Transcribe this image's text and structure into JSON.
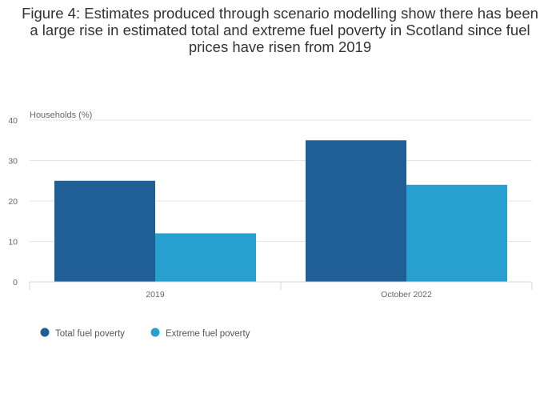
{
  "chart_data": {
    "type": "bar",
    "title": "Figure 4: Estimates produced through scenario modelling show there has been a large rise in estimated total and extreme fuel poverty in Scotland since fuel prices have risen from 2019",
    "ylabel": "Households (%)",
    "xlabel": "",
    "categories": [
      "2019",
      "October 2022"
    ],
    "series": [
      {
        "name": "Total fuel poverty",
        "values": [
          25,
          35
        ],
        "color": "#1f5f96"
      },
      {
        "name": "Extreme fuel poverty",
        "values": [
          12,
          24
        ],
        "color": "#28a0cf"
      }
    ],
    "ylim": [
      0,
      40
    ],
    "yticks": [
      "0",
      "10",
      "20",
      "30",
      "40"
    ],
    "grid": true,
    "legend_position": "bottom-left"
  }
}
